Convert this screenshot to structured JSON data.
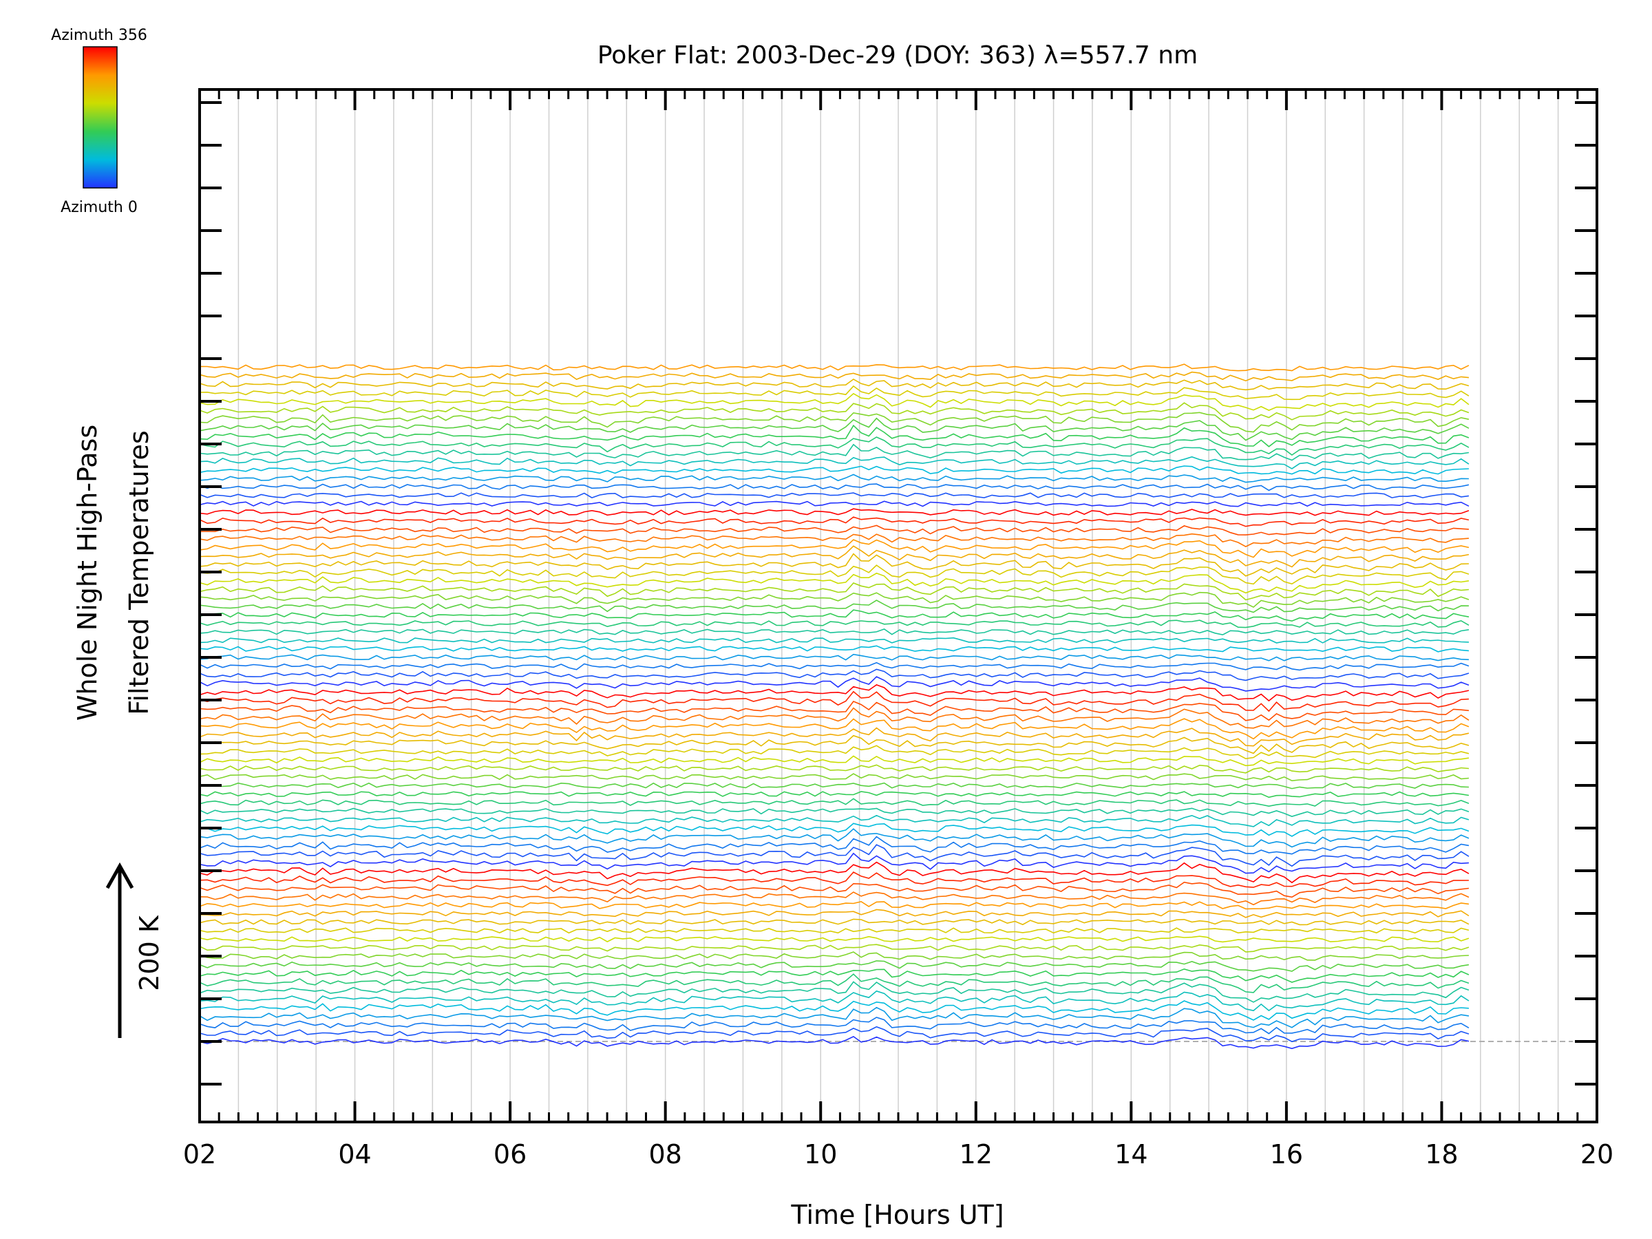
{
  "chart_data": {
    "type": "line",
    "title": "Poker Flat: 2003-Dec-29 (DOY: 363) λ=557.7 nm",
    "xlabel": "Time [Hours UT]",
    "ylabel_line1": "Whole Night High-Pass",
    "ylabel_line2": "Filtered Temperatures",
    "scale_label": "200 K",
    "colorbar": {
      "top_label": "Azimuth 356",
      "bottom_label": "Azimuth 0",
      "colors": [
        "#ff0000",
        "#ff9900",
        "#ccdd00",
        "#33cc55",
        "#00bbdd",
        "#2233ff"
      ]
    },
    "xlim": [
      2,
      20
    ],
    "x_ticks": [
      "02",
      "04",
      "06",
      "08",
      "10",
      "12",
      "14",
      "16",
      "18",
      "20"
    ],
    "data_x_range": [
      2,
      18.35
    ],
    "series_count": 80,
    "series_spacing_K": 100,
    "grid": "vertical",
    "series": [
      {
        "name": "",
        "values": [
          -7,
          -10,
          -6,
          4,
          -1,
          -2,
          2,
          0,
          -3,
          1,
          -8,
          -5,
          3,
          5,
          -2,
          -11,
          6,
          -10,
          -1,
          1,
          4,
          0,
          2,
          1,
          -6,
          -5,
          1,
          -3,
          0,
          5,
          -2,
          6,
          -1,
          1,
          3,
          2,
          -1,
          -6,
          -5,
          -7,
          5,
          -4,
          -3,
          1,
          -4,
          4,
          -9,
          -6,
          -7,
          -21,
          -2,
          -11,
          -16,
          -28,
          -19,
          -8,
          -19,
          -14,
          -8,
          -3,
          -6,
          -6,
          -2,
          -7,
          2,
          3,
          1,
          1,
          -3,
          -3,
          -1,
          -2,
          1,
          -7,
          3,
          1,
          1,
          -4,
          -7,
          0,
          -2,
          -2,
          -3,
          -13,
          -5,
          34,
          13,
          3,
          29,
          14,
          -13,
          -12,
          -1,
          -11,
          -13,
          -22,
          -8,
          1,
          4,
          -5,
          0,
          0,
          -8,
          -3,
          0,
          -1,
          4,
          -8,
          -7,
          -3,
          -1,
          -13,
          -13,
          -4,
          -8,
          -4,
          -5,
          -7,
          -10,
          -12,
          -9,
          -8,
          -5,
          -5,
          -12,
          -3,
          4,
          9,
          24,
          20,
          18,
          15,
          5,
          -21,
          -26,
          -31,
          -47,
          -50,
          -27,
          -42,
          -21,
          -34,
          -46,
          -30,
          -24,
          -30,
          -15,
          -15,
          -12,
          -7,
          -13,
          -16,
          -21,
          -10,
          -13,
          -10,
          -11,
          -13,
          -20,
          -15,
          -8,
          -25,
          -24,
          -10,
          4,
          -6
        ]
      }
    ]
  }
}
